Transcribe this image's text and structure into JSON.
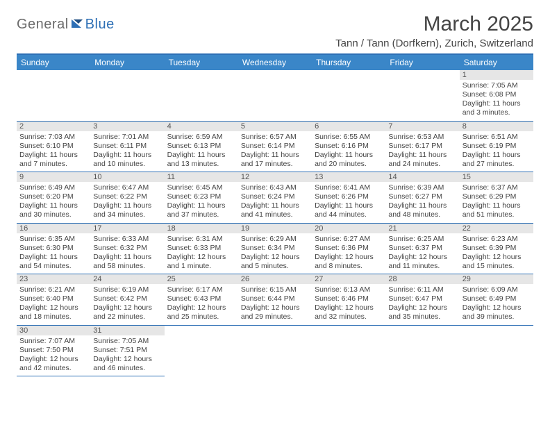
{
  "logo": {
    "word1": "General",
    "word2": "Blue"
  },
  "title": "March 2025",
  "location": "Tann / Tann (Dorfkern), Zurich, Switzerland",
  "colors": {
    "accent": "#2d6fb5",
    "header_bg": "#3a86c8",
    "daynum_bg": "#e6e6e6"
  },
  "days_of_week": [
    "Sunday",
    "Monday",
    "Tuesday",
    "Wednesday",
    "Thursday",
    "Friday",
    "Saturday"
  ],
  "cells": [
    {
      "n": "",
      "sr": "",
      "ss": "",
      "dl": ""
    },
    {
      "n": "",
      "sr": "",
      "ss": "",
      "dl": ""
    },
    {
      "n": "",
      "sr": "",
      "ss": "",
      "dl": ""
    },
    {
      "n": "",
      "sr": "",
      "ss": "",
      "dl": ""
    },
    {
      "n": "",
      "sr": "",
      "ss": "",
      "dl": ""
    },
    {
      "n": "",
      "sr": "",
      "ss": "",
      "dl": ""
    },
    {
      "n": "1",
      "sr": "Sunrise: 7:05 AM",
      "ss": "Sunset: 6:08 PM",
      "dl": "Daylight: 11 hours and 3 minutes."
    },
    {
      "n": "2",
      "sr": "Sunrise: 7:03 AM",
      "ss": "Sunset: 6:10 PM",
      "dl": "Daylight: 11 hours and 7 minutes."
    },
    {
      "n": "3",
      "sr": "Sunrise: 7:01 AM",
      "ss": "Sunset: 6:11 PM",
      "dl": "Daylight: 11 hours and 10 minutes."
    },
    {
      "n": "4",
      "sr": "Sunrise: 6:59 AM",
      "ss": "Sunset: 6:13 PM",
      "dl": "Daylight: 11 hours and 13 minutes."
    },
    {
      "n": "5",
      "sr": "Sunrise: 6:57 AM",
      "ss": "Sunset: 6:14 PM",
      "dl": "Daylight: 11 hours and 17 minutes."
    },
    {
      "n": "6",
      "sr": "Sunrise: 6:55 AM",
      "ss": "Sunset: 6:16 PM",
      "dl": "Daylight: 11 hours and 20 minutes."
    },
    {
      "n": "7",
      "sr": "Sunrise: 6:53 AM",
      "ss": "Sunset: 6:17 PM",
      "dl": "Daylight: 11 hours and 24 minutes."
    },
    {
      "n": "8",
      "sr": "Sunrise: 6:51 AM",
      "ss": "Sunset: 6:19 PM",
      "dl": "Daylight: 11 hours and 27 minutes."
    },
    {
      "n": "9",
      "sr": "Sunrise: 6:49 AM",
      "ss": "Sunset: 6:20 PM",
      "dl": "Daylight: 11 hours and 30 minutes."
    },
    {
      "n": "10",
      "sr": "Sunrise: 6:47 AM",
      "ss": "Sunset: 6:22 PM",
      "dl": "Daylight: 11 hours and 34 minutes."
    },
    {
      "n": "11",
      "sr": "Sunrise: 6:45 AM",
      "ss": "Sunset: 6:23 PM",
      "dl": "Daylight: 11 hours and 37 minutes."
    },
    {
      "n": "12",
      "sr": "Sunrise: 6:43 AM",
      "ss": "Sunset: 6:24 PM",
      "dl": "Daylight: 11 hours and 41 minutes."
    },
    {
      "n": "13",
      "sr": "Sunrise: 6:41 AM",
      "ss": "Sunset: 6:26 PM",
      "dl": "Daylight: 11 hours and 44 minutes."
    },
    {
      "n": "14",
      "sr": "Sunrise: 6:39 AM",
      "ss": "Sunset: 6:27 PM",
      "dl": "Daylight: 11 hours and 48 minutes."
    },
    {
      "n": "15",
      "sr": "Sunrise: 6:37 AM",
      "ss": "Sunset: 6:29 PM",
      "dl": "Daylight: 11 hours and 51 minutes."
    },
    {
      "n": "16",
      "sr": "Sunrise: 6:35 AM",
      "ss": "Sunset: 6:30 PM",
      "dl": "Daylight: 11 hours and 54 minutes."
    },
    {
      "n": "17",
      "sr": "Sunrise: 6:33 AM",
      "ss": "Sunset: 6:32 PM",
      "dl": "Daylight: 11 hours and 58 minutes."
    },
    {
      "n": "18",
      "sr": "Sunrise: 6:31 AM",
      "ss": "Sunset: 6:33 PM",
      "dl": "Daylight: 12 hours and 1 minute."
    },
    {
      "n": "19",
      "sr": "Sunrise: 6:29 AM",
      "ss": "Sunset: 6:34 PM",
      "dl": "Daylight: 12 hours and 5 minutes."
    },
    {
      "n": "20",
      "sr": "Sunrise: 6:27 AM",
      "ss": "Sunset: 6:36 PM",
      "dl": "Daylight: 12 hours and 8 minutes."
    },
    {
      "n": "21",
      "sr": "Sunrise: 6:25 AM",
      "ss": "Sunset: 6:37 PM",
      "dl": "Daylight: 12 hours and 11 minutes."
    },
    {
      "n": "22",
      "sr": "Sunrise: 6:23 AM",
      "ss": "Sunset: 6:39 PM",
      "dl": "Daylight: 12 hours and 15 minutes."
    },
    {
      "n": "23",
      "sr": "Sunrise: 6:21 AM",
      "ss": "Sunset: 6:40 PM",
      "dl": "Daylight: 12 hours and 18 minutes."
    },
    {
      "n": "24",
      "sr": "Sunrise: 6:19 AM",
      "ss": "Sunset: 6:42 PM",
      "dl": "Daylight: 12 hours and 22 minutes."
    },
    {
      "n": "25",
      "sr": "Sunrise: 6:17 AM",
      "ss": "Sunset: 6:43 PM",
      "dl": "Daylight: 12 hours and 25 minutes."
    },
    {
      "n": "26",
      "sr": "Sunrise: 6:15 AM",
      "ss": "Sunset: 6:44 PM",
      "dl": "Daylight: 12 hours and 29 minutes."
    },
    {
      "n": "27",
      "sr": "Sunrise: 6:13 AM",
      "ss": "Sunset: 6:46 PM",
      "dl": "Daylight: 12 hours and 32 minutes."
    },
    {
      "n": "28",
      "sr": "Sunrise: 6:11 AM",
      "ss": "Sunset: 6:47 PM",
      "dl": "Daylight: 12 hours and 35 minutes."
    },
    {
      "n": "29",
      "sr": "Sunrise: 6:09 AM",
      "ss": "Sunset: 6:49 PM",
      "dl": "Daylight: 12 hours and 39 minutes."
    },
    {
      "n": "30",
      "sr": "Sunrise: 7:07 AM",
      "ss": "Sunset: 7:50 PM",
      "dl": "Daylight: 12 hours and 42 minutes."
    },
    {
      "n": "31",
      "sr": "Sunrise: 7:05 AM",
      "ss": "Sunset: 7:51 PM",
      "dl": "Daylight: 12 hours and 46 minutes."
    },
    {
      "n": "",
      "sr": "",
      "ss": "",
      "dl": ""
    },
    {
      "n": "",
      "sr": "",
      "ss": "",
      "dl": ""
    },
    {
      "n": "",
      "sr": "",
      "ss": "",
      "dl": ""
    },
    {
      "n": "",
      "sr": "",
      "ss": "",
      "dl": ""
    },
    {
      "n": "",
      "sr": "",
      "ss": "",
      "dl": ""
    }
  ]
}
